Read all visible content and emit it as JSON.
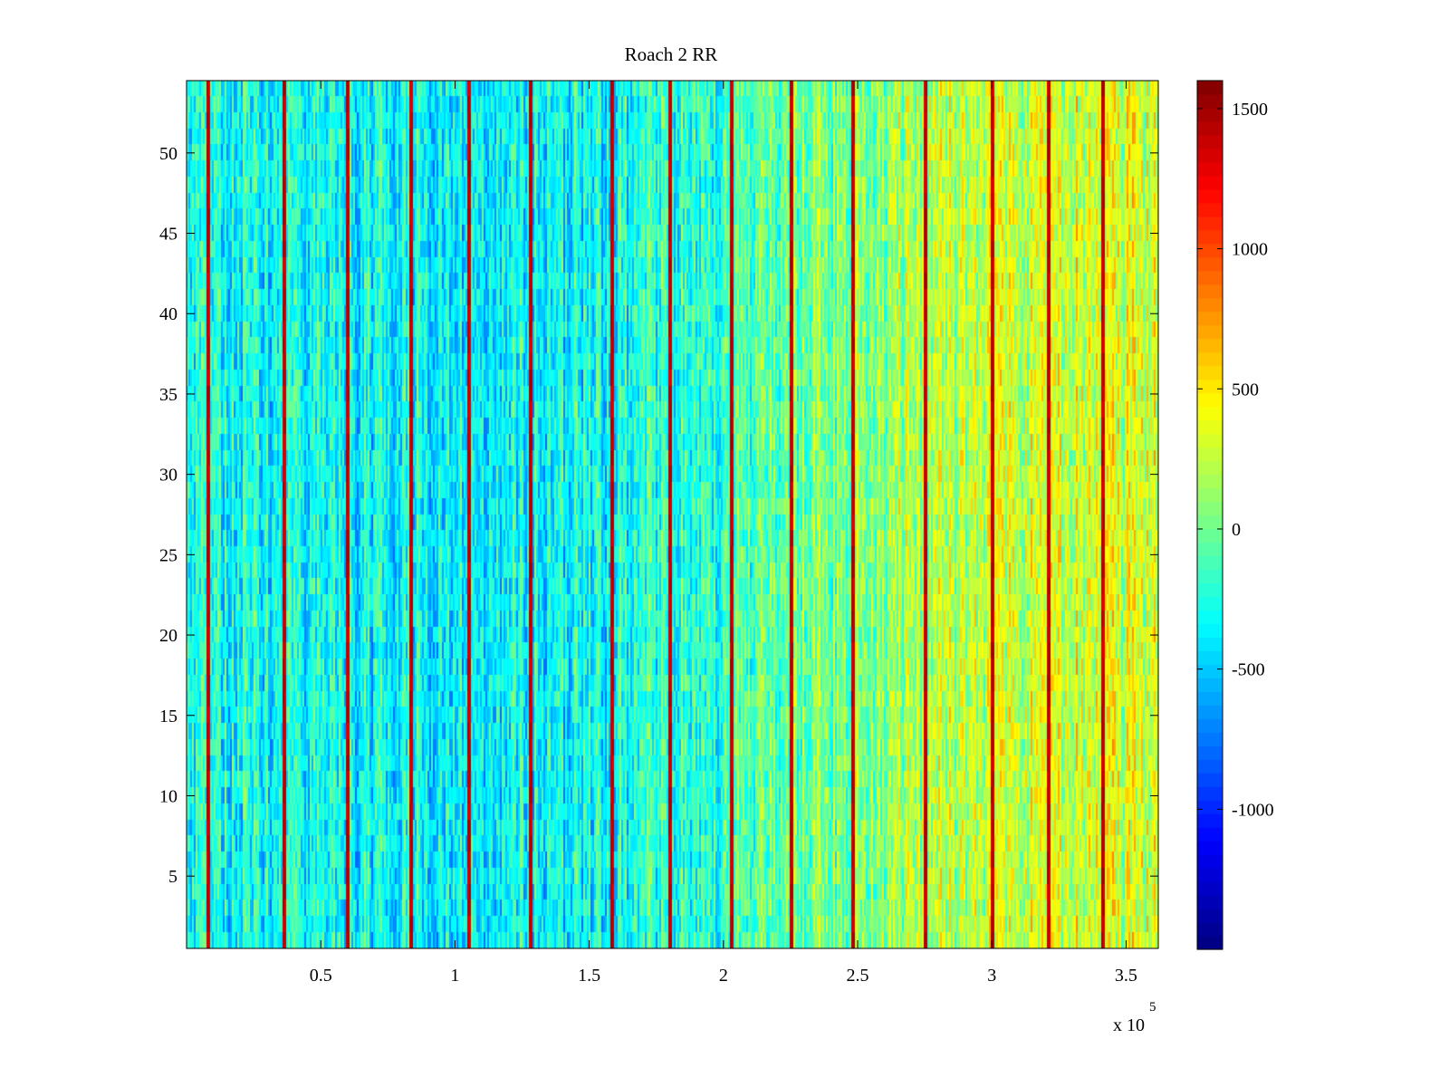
{
  "chart_data": {
    "type": "heatmap",
    "title": "Roach 2 RR",
    "xlabel": "",
    "ylabel": "",
    "x_multiplier_label": "x 10",
    "x_multiplier_exponent": "5",
    "xlim": [
      0,
      362000
    ],
    "ylim": [
      0.5,
      54.5
    ],
    "x_ticks": [
      {
        "value": 0.5,
        "label": "0.5"
      },
      {
        "value": 1,
        "label": "1"
      },
      {
        "value": 1.5,
        "label": "1.5"
      },
      {
        "value": 2,
        "label": "2"
      },
      {
        "value": 2.5,
        "label": "2.5"
      },
      {
        "value": 3,
        "label": "3"
      },
      {
        "value": 3.5,
        "label": "3.5"
      }
    ],
    "y_ticks": [
      {
        "value": 5,
        "label": "5"
      },
      {
        "value": 10,
        "label": "10"
      },
      {
        "value": 15,
        "label": "15"
      },
      {
        "value": 20,
        "label": "20"
      },
      {
        "value": 25,
        "label": "25"
      },
      {
        "value": 30,
        "label": "30"
      },
      {
        "value": 35,
        "label": "35"
      },
      {
        "value": 40,
        "label": "40"
      },
      {
        "value": 45,
        "label": "45"
      },
      {
        "value": 50,
        "label": "50"
      }
    ],
    "colorbar": {
      "colormap": "jet",
      "clim": [
        -1500,
        1600
      ],
      "ticks": [
        {
          "value": 1500,
          "label": "1500"
        },
        {
          "value": 1000,
          "label": "1000"
        },
        {
          "value": 500,
          "label": "500"
        },
        {
          "value": 0,
          "label": "0"
        },
        {
          "value": -500,
          "label": "-500"
        },
        {
          "value": -1000,
          "label": "-1000"
        }
      ]
    },
    "rows": 54,
    "column_trend": [
      {
        "x": 0,
        "value": -280
      },
      {
        "x": 50000,
        "value": -330
      },
      {
        "x": 100000,
        "value": -320
      },
      {
        "x": 150000,
        "value": -300
      },
      {
        "x": 200000,
        "value": -150
      },
      {
        "x": 250000,
        "value": 80
      },
      {
        "x": 300000,
        "value": 250
      },
      {
        "x": 340000,
        "value": 330
      },
      {
        "x": 362000,
        "value": 280
      }
    ],
    "high_value_stripes_x": [
      8000,
      36000,
      60000,
      83000,
      105000,
      128000,
      158000,
      180000,
      203000,
      225000,
      248000,
      275000,
      300000,
      321000,
      341000
    ],
    "high_value_stripes_value": 1400
  },
  "colors": {
    "axis": "#000000",
    "background": "#ffffff"
  }
}
